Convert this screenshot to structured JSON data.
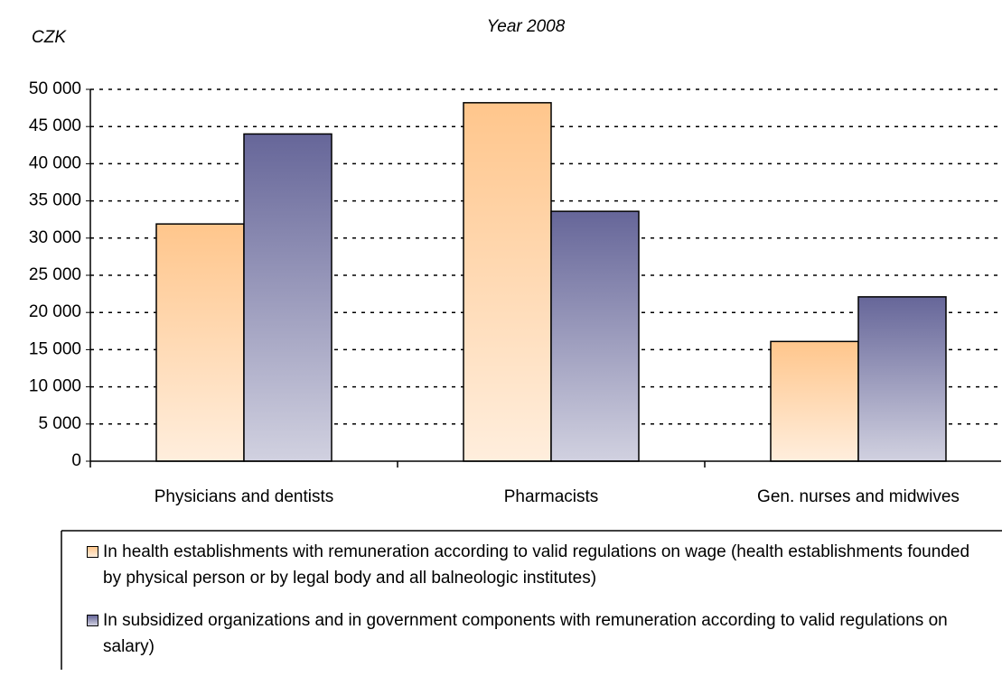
{
  "chart_data": {
    "type": "bar",
    "title": "Year 2008",
    "y_label": "CZK",
    "categories": [
      "Physicians and dentists",
      "Pharmacists",
      "Gen. nurses and midwives"
    ],
    "series": [
      {
        "name": "In health establishments with remuneration according to valid regulations on wage (health establishments founded by physical person or by legal body and all balneologic institutes)",
        "color": "#ffc68c",
        "values": [
          31900,
          48200,
          16100
        ]
      },
      {
        "name": "In subsidized organizations and in government components with remuneration according to valid regulations on salary)",
        "color": "#666699",
        "values": [
          44000,
          33600,
          22100
        ]
      }
    ],
    "ylim": [
      0,
      50000
    ],
    "yticks": [
      0,
      {
        "value": 5000,
        "label": "5 000"
      },
      {
        "value": 10000,
        "label": "10 000"
      },
      {
        "value": 15000,
        "label": "15 000"
      },
      {
        "value": 20000,
        "label": "20 000"
      },
      {
        "value": 25000,
        "label": "25 000"
      },
      {
        "value": 30000,
        "label": "30 000"
      },
      {
        "value": 35000,
        "label": "35 000"
      },
      {
        "value": 40000,
        "label": "40 000"
      },
      {
        "value": 45000,
        "label": "45 000"
      },
      {
        "value": 50000,
        "label": "50 000"
      }
    ],
    "grid": true,
    "legend": "bottom"
  }
}
